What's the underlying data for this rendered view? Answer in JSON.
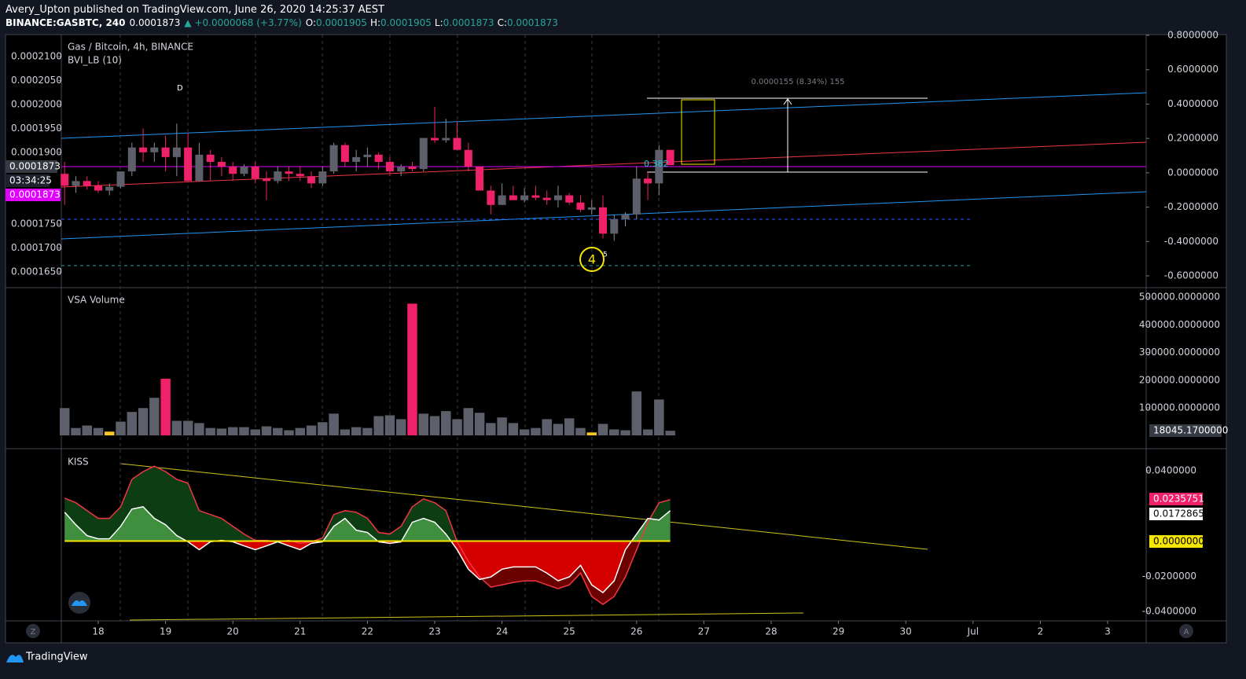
{
  "header": {
    "author": "Avery_Upton",
    "published": "published on TradingView.com, June 26, 2020 14:25:37 AEST",
    "symbol": "BINANCE:GASBTC, 240",
    "last": "0.0001873",
    "change": "▲ +0.0000068 (+3.77%)",
    "ohlc": [
      {
        "label": "O:",
        "value": "0.0001905"
      },
      {
        "label": "H:",
        "value": "0.0001905"
      },
      {
        "label": "L:",
        "value": "0.0001873"
      },
      {
        "label": "C:",
        "value": "0.0001873"
      }
    ]
  },
  "price_pane": {
    "title": "Gas / Bitcoin, 4h, BINANCE",
    "indicator": "BVI_LB (10)",
    "up_color": "#5d606b",
    "down_color": "#f0216b",
    "left_ticks": [
      {
        "value": 0.00021,
        "label": "0.0002100"
      },
      {
        "value": 0.000205,
        "label": "0.0002050"
      },
      {
        "value": 0.0002,
        "label": "0.0002000"
      },
      {
        "value": 0.000195,
        "label": "0.0001950"
      },
      {
        "value": 0.00019,
        "label": "0.0001900"
      },
      {
        "value": 0.000175,
        "label": "0.0001750"
      },
      {
        "value": 0.00017,
        "label": "0.0001700"
      },
      {
        "value": 0.000165,
        "label": "0.0001650"
      }
    ],
    "right_ticks": [
      {
        "value": 0.8,
        "label": "0.8000000"
      },
      {
        "value": 0.6,
        "label": "0.6000000"
      },
      {
        "value": 0.4,
        "label": "0.4000000"
      },
      {
        "value": 0.2,
        "label": "0.2000000"
      },
      {
        "value": 0,
        "label": "0.0000000"
      },
      {
        "value": -0.2,
        "label": "-0.2000000"
      },
      {
        "value": -0.4,
        "label": "-0.4000000"
      },
      {
        "value": -0.6,
        "label": "-0.6000000"
      }
    ],
    "price_label": "0.0001873",
    "countdown": "03:34:25",
    "bid_label": "0.0001873",
    "candles": [
      [
        0.0001855,
        0.000188,
        0.000179,
        0.000183
      ],
      [
        0.000183,
        0.000185,
        0.0001815,
        0.000184
      ],
      [
        0.000184,
        0.000185,
        0.0001822,
        0.000183
      ],
      [
        0.000183,
        0.000184,
        0.0001815,
        0.000182
      ],
      [
        0.000182,
        0.0001835,
        0.000181,
        0.0001828
      ],
      [
        0.0001828,
        0.000186,
        0.0001825,
        0.000186
      ],
      [
        0.000186,
        0.000192,
        0.000185,
        0.000191
      ],
      [
        0.000191,
        0.000195,
        0.000188,
        0.00019
      ],
      [
        0.00019,
        0.000192,
        0.000188,
        0.000191
      ],
      [
        0.000191,
        0.0001935,
        0.000186,
        0.000189
      ],
      [
        0.000189,
        0.000196,
        0.000185,
        0.000191
      ],
      [
        0.000191,
        0.000194,
        0.000184,
        0.000184
      ],
      [
        0.000184,
        0.000192,
        0.000184,
        0.0001895
      ],
      [
        0.0001895,
        0.0001905,
        0.000184,
        0.000188
      ],
      [
        0.000188,
        0.000189,
        0.000185,
        0.000187
      ],
      [
        0.000187,
        0.000188,
        0.000184,
        0.0001855
      ],
      [
        0.0001855,
        0.0001875,
        0.000185,
        0.000187
      ],
      [
        0.000187,
        0.000188,
        0.0001835,
        0.0001845
      ],
      [
        0.0001845,
        0.000186,
        0.00018,
        0.000184
      ],
      [
        0.000184,
        0.000187,
        0.0001835,
        0.000186
      ],
      [
        0.000186,
        0.000187,
        0.000184,
        0.0001855
      ],
      [
        0.0001855,
        0.000187,
        0.000184,
        0.000185
      ],
      [
        0.000185,
        0.000186,
        0.0001825,
        0.0001835
      ],
      [
        0.0001835,
        0.000187,
        0.000183,
        0.000186
      ],
      [
        0.000186,
        0.000192,
        0.0001855,
        0.0001915
      ],
      [
        0.0001915,
        0.000192,
        0.000187,
        0.000188
      ],
      [
        0.000188,
        0.0001905,
        0.000186,
        0.000189
      ],
      [
        0.000189,
        0.000191,
        0.000187,
        0.0001895
      ],
      [
        0.0001895,
        0.00019,
        0.0001865,
        0.000188
      ],
      [
        0.000188,
        0.000189,
        0.000185,
        0.000186
      ],
      [
        0.000186,
        0.0001875,
        0.000185,
        0.000187
      ],
      [
        0.000187,
        0.000188,
        0.000186,
        0.0001865
      ],
      [
        0.0001865,
        0.000193,
        0.000186,
        0.000193
      ],
      [
        0.000193,
        0.0001995,
        0.000192,
        0.0001925
      ],
      [
        0.0001925,
        0.000197,
        0.000192,
        0.000193
      ],
      [
        0.000193,
        0.0001965,
        0.0001905,
        0.0001905
      ],
      [
        0.0001905,
        0.000192,
        0.000186,
        0.000187
      ],
      [
        0.000187,
        0.000187,
        0.000182,
        0.000182
      ],
      [
        0.000182,
        0.000183,
        0.000177,
        0.000179
      ],
      [
        0.000179,
        0.0001835,
        0.000179,
        0.000181
      ],
      [
        0.000181,
        0.000183,
        0.00018,
        0.00018
      ],
      [
        0.00018,
        0.0001825,
        0.0001795,
        0.000181
      ],
      [
        0.000181,
        0.000183,
        0.00018,
        0.0001805
      ],
      [
        0.0001805,
        0.000182,
        0.000179,
        0.00018
      ],
      [
        0.00018,
        0.000183,
        0.0001785,
        0.000181
      ],
      [
        0.000181,
        0.0001815,
        0.000179,
        0.0001795
      ],
      [
        0.0001795,
        0.000181,
        0.0001775,
        0.000178
      ],
      [
        0.000178,
        0.00018,
        0.000177,
        0.0001785
      ],
      [
        0.0001785,
        0.000181,
        0.000172,
        0.000173
      ],
      [
        0.000173,
        0.000177,
        0.0001715,
        0.000176
      ],
      [
        0.000176,
        0.0001775,
        0.0001745,
        0.000177
      ],
      [
        0.000177,
        0.000187,
        0.000176,
        0.0001845
      ],
      [
        0.0001845,
        0.000186,
        0.00018,
        0.0001835
      ],
      [
        0.0001835,
        0.0001915,
        0.000181,
        0.0001905
      ],
      [
        0.0001905,
        0.0001905,
        0.0001873,
        0.0001873
      ]
    ]
  },
  "annotations": {
    "wave_d": "D",
    "measure": "0.0000155 (8.34%) 155",
    "fib": "0.382",
    "wave_4": "4",
    "wave_5": "5"
  },
  "volume_pane": {
    "title": "VSA Volume",
    "ticks": [
      {
        "value": 500000,
        "label": "500000.0000000"
      },
      {
        "value": 400000,
        "label": "400000.0000000"
      },
      {
        "value": 300000,
        "label": "300000.0000000"
      },
      {
        "value": 200000,
        "label": "200000.0000000"
      },
      {
        "value": 100000,
        "label": "100000.0000000"
      }
    ],
    "values": [
      100000,
      28000,
      37000,
      28000,
      15000,
      51000,
      86000,
      100000,
      137000,
      206000,
      54000,
      54000,
      46000,
      28000,
      26000,
      31000,
      31000,
      23000,
      34000,
      28000,
      20000,
      28000,
      37000,
      49000,
      80000,
      23000,
      31000,
      28000,
      71000,
      74000,
      60000,
      477000,
      80000,
      71000,
      89000,
      60000,
      100000,
      83000,
      46000,
      66000,
      46000,
      23000,
      28000,
      60000,
      43000,
      63000,
      28000,
      12000,
      43000,
      23000,
      20000,
      160000,
      23000,
      131000,
      18045.17
    ],
    "value_labels": {
      "54": "18045.1700000"
    },
    "colors": [
      "#5d606b",
      "#5d606b",
      "#5d606b",
      "#5d606b",
      "#f7c52b",
      "#5d606b",
      "#5d606b",
      "#5d606b",
      "#5d606b",
      "#f0216b",
      "#5d606b",
      "#5d606b",
      "#5d606b",
      "#5d606b",
      "#5d606b",
      "#5d606b",
      "#5d606b",
      "#5d606b",
      "#5d606b",
      "#5d606b",
      "#5d606b",
      "#5d606b",
      "#5d606b",
      "#5d606b",
      "#5d606b",
      "#5d606b",
      "#5d606b",
      "#5d606b",
      "#5d606b",
      "#5d606b",
      "#5d606b",
      "#f0216b",
      "#5d606b",
      "#5d606b",
      "#5d606b",
      "#5d606b",
      "#5d606b",
      "#5d606b",
      "#5d606b",
      "#5d606b",
      "#5d606b",
      "#5d606b",
      "#5d606b",
      "#5d606b",
      "#5d606b",
      "#5d606b",
      "#5d606b",
      "#f7c52b",
      "#5d606b",
      "#5d606b",
      "#5d606b",
      "#5d606b",
      "#5d606b",
      "#5d606b",
      "#5d606b"
    ]
  },
  "kiss_pane": {
    "title": "KISS",
    "ticks": [
      {
        "value": 0.04,
        "label": "0.0400000"
      },
      {
        "value": -0.02,
        "label": "-0.0200000"
      },
      {
        "value": -0.04,
        "label": "-0.0400000"
      }
    ],
    "series": [
      {
        "color": "#f23645",
        "values": [
          0.0244,
          0.0218,
          0.0173,
          0.0129,
          0.0129,
          0.0195,
          0.0351,
          0.0395,
          0.0426,
          0.0395,
          0.0351,
          0.0329,
          0.0173,
          0.0151,
          0.0129,
          0.0084,
          0.004,
          0.0004,
          0.0004,
          -0.0004,
          0.0004,
          -0.0013,
          -0.0004,
          0.0018,
          0.0151,
          0.0173,
          0.0164,
          0.0129,
          0.0049,
          0.004,
          0.0084,
          0.0195,
          0.024,
          0.0218,
          0.0173,
          -0.0004,
          -0.0115,
          -0.0204,
          -0.0262,
          -0.0249,
          -0.0235,
          -0.0226,
          -0.0226,
          -0.0249,
          -0.0271,
          -0.0249,
          -0.0182,
          -0.0315,
          -0.036,
          -0.0315,
          -0.0204,
          -0.0049,
          0.0107,
          0.0218,
          0.0235751
        ],
        "label": "0.0235751"
      },
      {
        "color": "#ffffff",
        "values": [
          0.0164,
          0.0093,
          0.0031,
          0.0013,
          0.0013,
          0.0084,
          0.0182,
          0.0195,
          0.0129,
          0.0093,
          0.0031,
          -0.0004,
          -0.0049,
          -0.0004,
          0.0004,
          -0.0004,
          -0.0027,
          -0.0049,
          -0.0027,
          -0.0004,
          -0.0027,
          -0.0049,
          -0.0013,
          -0.0004,
          0.0084,
          0.0129,
          0.0062,
          0.0049,
          -0.0004,
          -0.0013,
          -0.0004,
          0.0107,
          0.0129,
          0.0107,
          0.004,
          -0.0049,
          -0.016,
          -0.0218,
          -0.0204,
          -0.016,
          -0.0147,
          -0.0147,
          -0.0147,
          -0.0182,
          -0.0226,
          -0.0204,
          -0.0138,
          -0.0249,
          -0.0293,
          -0.0226,
          -0.0049,
          0.004,
          0.0129,
          0.012,
          0.0172865
        ],
        "label": "0.0172865"
      }
    ],
    "zero_label": "0.0000000"
  },
  "x_axis": {
    "labels": [
      "18",
      "19",
      "20",
      "21",
      "22",
      "23",
      "24",
      "25",
      "26",
      "27",
      "28",
      "29",
      "30",
      "Jul",
      "2",
      "3"
    ]
  },
  "toolbar": {
    "left": "Z",
    "right": "A"
  },
  "footer": {
    "brand": "TradingView"
  }
}
